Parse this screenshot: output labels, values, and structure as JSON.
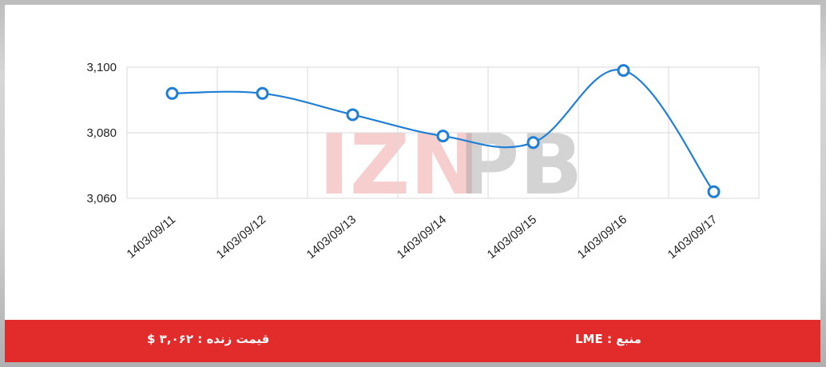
{
  "watermark": {
    "left": "IZN",
    "right": "PB"
  },
  "chart_data": {
    "type": "line",
    "x": [
      "1403/09/11",
      "1403/09/12",
      "1403/09/13",
      "1403/09/14",
      "1403/09/15",
      "1403/09/16",
      "1403/09/17"
    ],
    "series": [
      {
        "values": [
          3092,
          3092,
          3085.5,
          3079,
          3077,
          3099,
          3062
        ],
        "color": "#1f7fd6"
      }
    ],
    "yticks": [
      3060,
      3080,
      3100
    ],
    "ytick_labels": [
      "3,060",
      "3,080",
      "3,100"
    ],
    "ylim": [
      3060,
      3100
    ],
    "grid": true,
    "title": "",
    "xlabel": "",
    "ylabel": ""
  },
  "footer": {
    "price_text": "قیمت زنده : ۳,۰۶۲ $",
    "source_text": "منبع : LME",
    "background": "#e22b2b"
  }
}
